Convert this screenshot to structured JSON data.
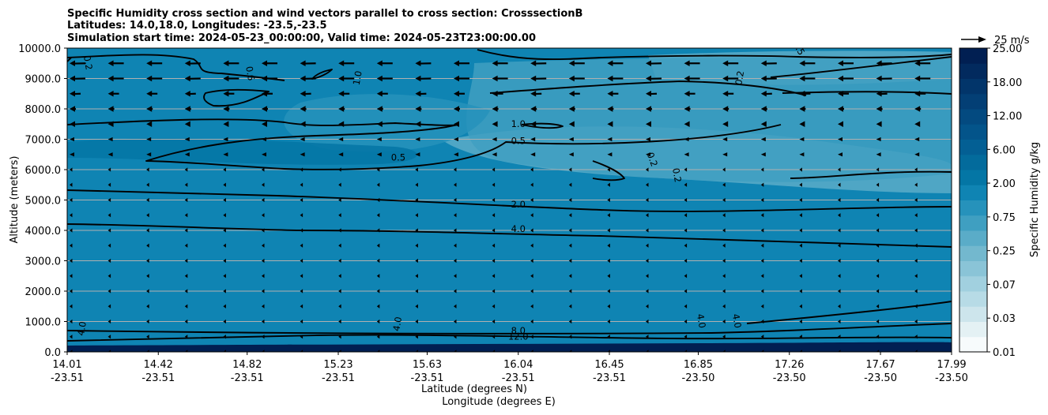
{
  "chart_data": {
    "type": "heatmap",
    "title_lines": [
      "Specific Humidity cross section and wind vectors parallel to cross section: CrosssectionB",
      "Latitudes: 14.0,18.0, Longitudes: -23.5,-23.5",
      "Simulation start time: 2024-05-23_00:00:00, Valid time: 2024-05-23T23:00:00.00"
    ],
    "xlabel_lines": [
      "Latitude (degrees N)",
      "Longitude (degrees E)"
    ],
    "ylabel": "Altitude (meters)",
    "ylim": [
      0,
      10000
    ],
    "yticks": [
      "0.0",
      "1000.0",
      "2000.0",
      "3000.0",
      "4000.0",
      "5000.0",
      "6000.0",
      "7000.0",
      "8000.0",
      "9000.0",
      "10000.0"
    ],
    "xticks": [
      {
        "lat": "14.01",
        "lon": "-23.51"
      },
      {
        "lat": "14.42",
        "lon": "-23.51"
      },
      {
        "lat": "14.82",
        "lon": "-23.51"
      },
      {
        "lat": "15.23",
        "lon": "-23.51"
      },
      {
        "lat": "15.63",
        "lon": "-23.51"
      },
      {
        "lat": "16.04",
        "lon": "-23.51"
      },
      {
        "lat": "16.45",
        "lon": "-23.51"
      },
      {
        "lat": "16.85",
        "lon": "-23.50"
      },
      {
        "lat": "17.26",
        "lon": "-23.50"
      },
      {
        "lat": "17.67",
        "lon": "-23.50"
      },
      {
        "lat": "17.99",
        "lon": "-23.50"
      }
    ],
    "grid": "horizontal",
    "colorbar": {
      "label": "Specific Humidity g/kg",
      "levels": [
        0.01,
        0.02,
        0.03,
        0.05,
        0.07,
        0.1,
        0.25,
        0.5,
        0.75,
        1.0,
        2.0,
        4.0,
        6.0,
        9.0,
        12.0,
        15.0,
        18.0,
        21.0,
        25.0
      ],
      "tick_labels": [
        "0.01",
        "0.03",
        "0.07",
        "0.25",
        "0.75",
        "2.00",
        "6.00",
        "12.00",
        "18.00",
        "25.00"
      ],
      "colors": [
        "#f7fbfc",
        "#e4f1f4",
        "#cde5ec",
        "#b7dbe6",
        "#a1d0df",
        "#8ac4d7",
        "#73b8ce",
        "#5aacc8",
        "#3f9fc1",
        "#2692bb",
        "#0f84b3",
        "#0476a5",
        "#036b9c",
        "#035f94",
        "#03548a",
        "#034a80",
        "#033f75",
        "#02356a",
        "#022a5e",
        "#011f52"
      ]
    },
    "quiver_key": {
      "label": "25 m/s",
      "speed": 25
    },
    "contour_labels": [
      {
        "text": "0.2",
        "lat": 14.09,
        "alt": 9500
      },
      {
        "text": "0.6",
        "lat": 14.82,
        "alt": 9150
      },
      {
        "text": "1.0",
        "lat": 15.33,
        "alt": 9000
      },
      {
        "text": "1.0",
        "lat": 16.04,
        "alt": 7400
      },
      {
        "text": "0.5",
        "lat": 16.04,
        "alt": 6850
      },
      {
        "text": "0.5",
        "lat": 15.5,
        "alt": 6300
      },
      {
        "text": "0.2",
        "lat": 16.63,
        "alt": 6300
      },
      {
        "text": "0.2",
        "lat": 16.74,
        "alt": 5800
      },
      {
        "text": "0.2",
        "lat": 17.05,
        "alt": 9000
      },
      {
        "text": "0.5",
        "lat": 17.29,
        "alt": 9950
      },
      {
        "text": "2.0",
        "lat": 16.04,
        "alt": 4750
      },
      {
        "text": "4.0",
        "lat": 16.04,
        "alt": 3950
      },
      {
        "text": "4.0",
        "lat": 14.09,
        "alt": 750
      },
      {
        "text": "4.0",
        "lat": 15.51,
        "alt": 900
      },
      {
        "text": "4.0",
        "lat": 16.85,
        "alt": 1000
      },
      {
        "text": "4.0",
        "lat": 17.01,
        "alt": 1000
      },
      {
        "text": "8.0",
        "lat": 16.04,
        "alt": 600
      },
      {
        "text": "12.0",
        "lat": 16.04,
        "alt": 400
      }
    ]
  }
}
